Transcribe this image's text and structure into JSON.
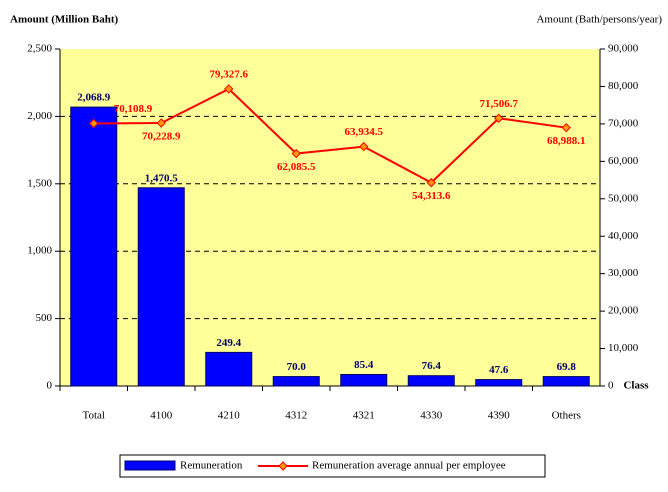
{
  "chart_data": {
    "type": "bar_line",
    "ylabel": "Amount (Million Baht)",
    "y2label": "Amount (Bath/persons/year)",
    "xlabel": "Class",
    "categories": [
      "Total",
      "4100",
      "4210",
      "4312",
      "4321",
      "4330",
      "4390",
      "Others"
    ],
    "series": [
      {
        "name": "Remuneration",
        "type": "bar",
        "color": "#0000ff",
        "values": [
          2068.9,
          1470.5,
          249.4,
          70.0,
          85.4,
          76.4,
          47.6,
          69.8
        ],
        "value_labels": [
          "2,068.9",
          "1,470.5",
          "249.4",
          "70.0",
          "85.4",
          "76.4",
          "47.6",
          "69.8"
        ]
      },
      {
        "name": "Remuneration average annual per employee",
        "type": "line",
        "axis": "y2",
        "color": "#ff0000",
        "values": [
          70108.9,
          70228.9,
          79327.6,
          62085.5,
          63934.5,
          54313.6,
          71506.7,
          68988.1
        ],
        "value_labels": [
          "70,108.9",
          "70,228.9",
          "79,327.6",
          "62,085.5",
          "63,934.5",
          "54,313.6",
          "71,506.7",
          "68,988.1"
        ]
      }
    ],
    "ylim": [
      0,
      2500
    ],
    "yticks": [
      0,
      500,
      {
        "value": 1000,
        "label": "1,000"
      },
      {
        "value": 1500,
        "label": "1,500"
      },
      {
        "value": 2000,
        "label": "2,000"
      },
      {
        "value": 2500,
        "label": "2,500"
      }
    ],
    "y2lim": [
      0,
      90000
    ],
    "y2ticks": [
      0,
      {
        "value": 10000,
        "label": "10,000"
      },
      {
        "value": 20000,
        "label": "20,000"
      },
      {
        "value": 30000,
        "label": "30,000"
      },
      {
        "value": 40000,
        "label": "40,000"
      },
      {
        "value": 50000,
        "label": "50,000"
      },
      {
        "value": 60000,
        "label": "60,000"
      },
      {
        "value": 70000,
        "label": "70,000"
      },
      {
        "value": 80000,
        "label": "80,000"
      },
      {
        "value": 90000,
        "label": "90,000"
      }
    ],
    "grid": true
  }
}
